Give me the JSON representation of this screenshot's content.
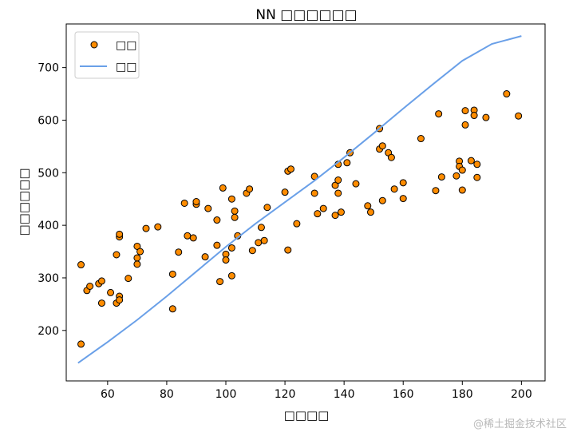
{
  "chart_data": {
    "type": "scatter",
    "title": "NN □□□□□□",
    "xlabel": "□□□□",
    "ylabel": "□□□□□□",
    "xlim": [
      46,
      208
    ],
    "ylim": [
      104,
      783
    ],
    "xticks": [
      60,
      80,
      100,
      120,
      140,
      160,
      180,
      200
    ],
    "yticks": [
      200,
      300,
      400,
      500,
      600,
      700
    ],
    "grid": false,
    "legend_position": "top-left",
    "series": [
      {
        "name": "□□",
        "kind": "scatter",
        "color": "#ff8c00",
        "edge_color": "#000000",
        "points": [
          [
            51,
            174
          ],
          [
            51,
            325
          ],
          [
            53,
            276
          ],
          [
            54,
            284
          ],
          [
            57,
            289
          ],
          [
            58,
            252
          ],
          [
            58,
            294
          ],
          [
            61,
            272
          ],
          [
            63,
            252
          ],
          [
            63,
            344
          ],
          [
            64,
            265
          ],
          [
            64,
            258
          ],
          [
            64,
            378
          ],
          [
            64,
            383
          ],
          [
            67,
            299
          ],
          [
            70,
            360
          ],
          [
            70,
            338
          ],
          [
            70,
            326
          ],
          [
            71,
            350
          ],
          [
            73,
            394
          ],
          [
            77,
            397
          ],
          [
            82,
            307
          ],
          [
            82,
            241
          ],
          [
            84,
            349
          ],
          [
            86,
            442
          ],
          [
            87,
            380
          ],
          [
            89,
            376
          ],
          [
            90,
            440
          ],
          [
            90,
            445
          ],
          [
            93,
            340
          ],
          [
            94,
            432
          ],
          [
            97,
            410
          ],
          [
            97,
            362
          ],
          [
            98,
            293
          ],
          [
            99,
            471
          ],
          [
            100,
            345
          ],
          [
            100,
            334
          ],
          [
            102,
            357
          ],
          [
            102,
            304
          ],
          [
            102,
            450
          ],
          [
            103,
            427
          ],
          [
            103,
            415
          ],
          [
            104,
            380
          ],
          [
            107,
            461
          ],
          [
            108,
            469
          ],
          [
            109,
            352
          ],
          [
            111,
            367
          ],
          [
            112,
            396
          ],
          [
            113,
            371
          ],
          [
            114,
            434
          ],
          [
            120,
            463
          ],
          [
            121,
            353
          ],
          [
            121,
            503
          ],
          [
            122,
            507
          ],
          [
            124,
            403
          ],
          [
            130,
            493
          ],
          [
            130,
            461
          ],
          [
            131,
            422
          ],
          [
            133,
            432
          ],
          [
            137,
            419
          ],
          [
            137,
            476
          ],
          [
            138,
            486
          ],
          [
            138,
            516
          ],
          [
            138,
            461
          ],
          [
            139,
            425
          ],
          [
            141,
            519
          ],
          [
            142,
            538
          ],
          [
            144,
            479
          ],
          [
            148,
            437
          ],
          [
            149,
            425
          ],
          [
            152,
            584
          ],
          [
            152,
            545
          ],
          [
            153,
            551
          ],
          [
            153,
            447
          ],
          [
            155,
            538
          ],
          [
            156,
            529
          ],
          [
            157,
            469
          ],
          [
            160,
            451
          ],
          [
            160,
            481
          ],
          [
            166,
            565
          ],
          [
            171,
            466
          ],
          [
            172,
            612
          ],
          [
            173,
            492
          ],
          [
            178,
            494
          ],
          [
            179,
            522
          ],
          [
            179,
            512
          ],
          [
            180,
            467
          ],
          [
            180,
            505
          ],
          [
            181,
            591
          ],
          [
            181,
            618
          ],
          [
            183,
            523
          ],
          [
            184,
            619
          ],
          [
            184,
            609
          ],
          [
            185,
            491
          ],
          [
            185,
            516
          ],
          [
            188,
            605
          ],
          [
            195,
            650
          ],
          [
            199,
            608
          ]
        ]
      },
      {
        "name": "□□",
        "kind": "line",
        "color": "#6aa0e8",
        "x": [
          50,
          60,
          70,
          80,
          90,
          100,
          110,
          120,
          130,
          140,
          150,
          160,
          170,
          180,
          190,
          200
        ],
        "y": [
          138,
          178,
          220,
          265,
          312,
          359,
          403,
          444,
          485,
          529,
          575,
          622,
          668,
          713,
          745,
          760
        ]
      }
    ]
  },
  "watermark": {
    "text": "@稀土掘金技术社区"
  }
}
